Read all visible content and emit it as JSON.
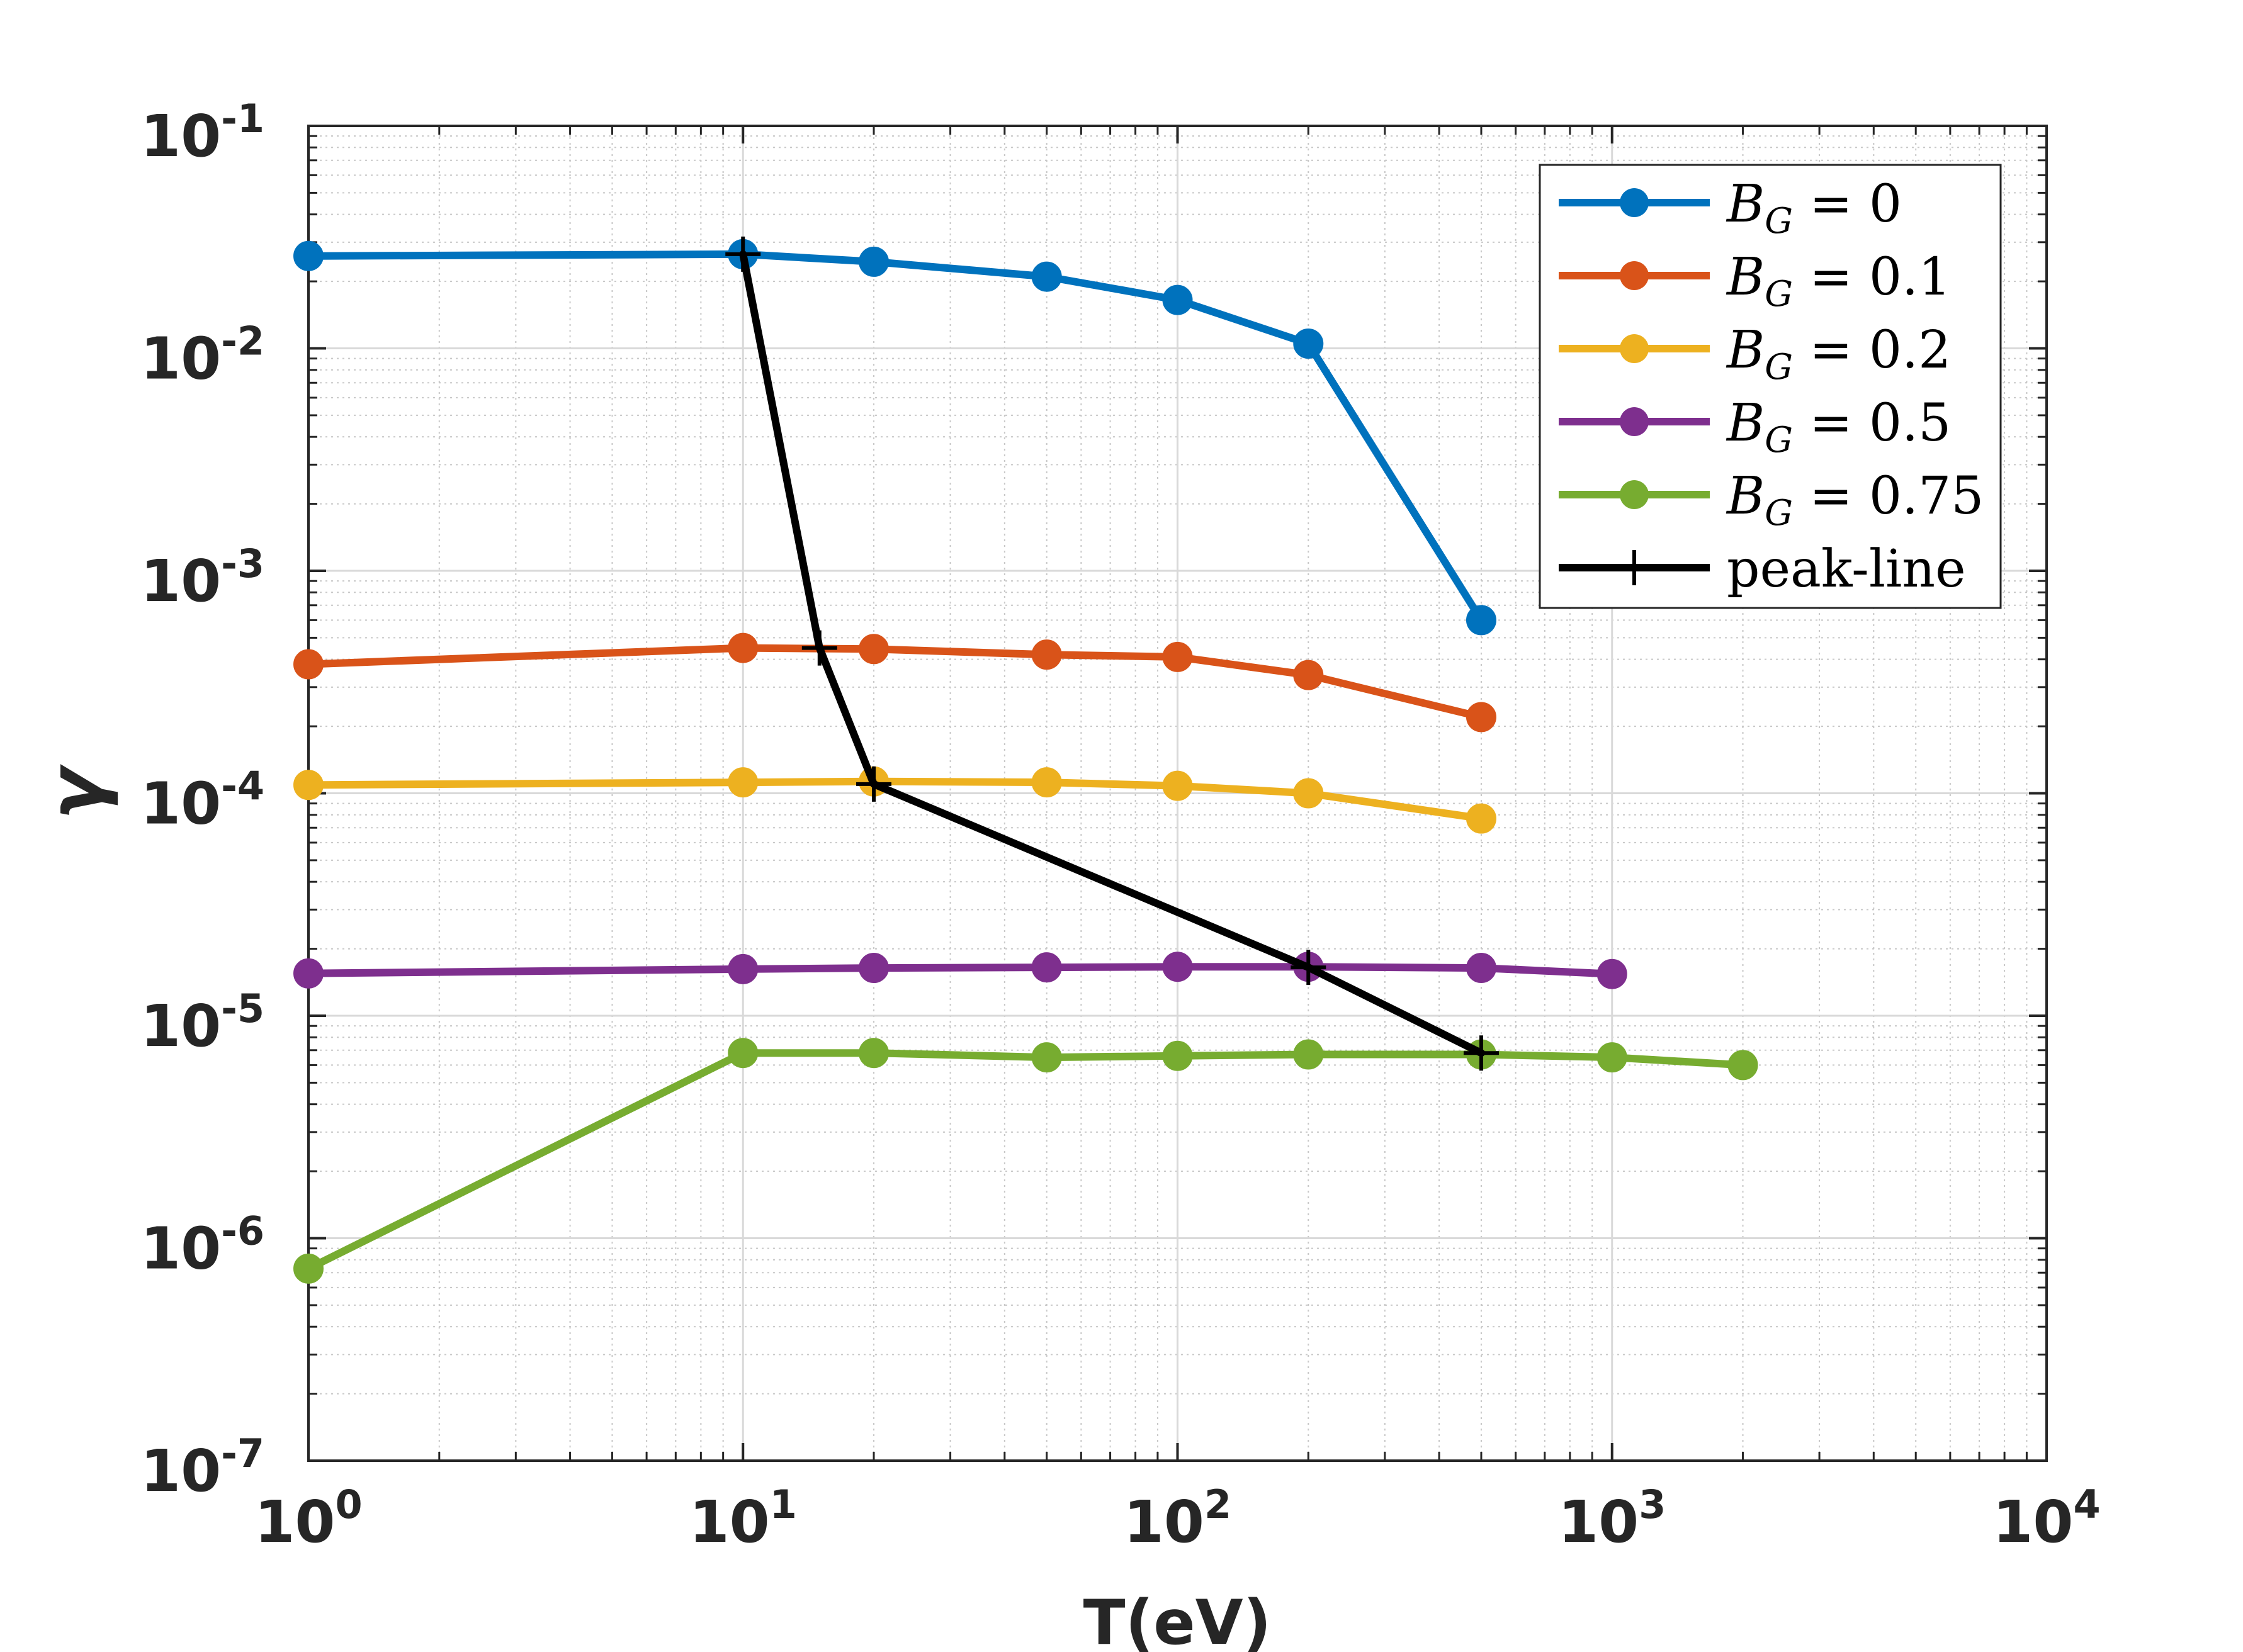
{
  "chart_data": {
    "type": "line",
    "xscale": "log",
    "yscale": "log",
    "xlabel": "T(eV)",
    "ylabel": "γ",
    "xlim": [
      1,
      10000
    ],
    "ylim": [
      1e-07,
      0.1
    ],
    "grid": true,
    "minor_grid": true,
    "legend_position": "top-right",
    "x_ticks": [
      {
        "value": 1,
        "base": "10",
        "exp": "0"
      },
      {
        "value": 10,
        "base": "10",
        "exp": "1"
      },
      {
        "value": 100,
        "base": "10",
        "exp": "2"
      },
      {
        "value": 1000,
        "base": "10",
        "exp": "3"
      },
      {
        "value": 10000,
        "base": "10",
        "exp": "4"
      }
    ],
    "y_ticks": [
      {
        "value": 1e-07,
        "base": "10",
        "exp": "-7"
      },
      {
        "value": 1e-06,
        "base": "10",
        "exp": "-6"
      },
      {
        "value": 1e-05,
        "base": "10",
        "exp": "-5"
      },
      {
        "value": 0.0001,
        "base": "10",
        "exp": "-4"
      },
      {
        "value": 0.001,
        "base": "10",
        "exp": "-3"
      },
      {
        "value": 0.01,
        "base": "10",
        "exp": "-2"
      },
      {
        "value": 0.1,
        "base": "10",
        "exp": "-1"
      }
    ],
    "series": [
      {
        "name": "B_G = 0",
        "label_main": "B",
        "label_sub": "G",
        "label_rest": " = 0",
        "color": "#0072BD",
        "marker": "circle",
        "x": [
          1,
          10,
          20,
          50,
          100,
          200,
          500
        ],
        "y": [
          0.026,
          0.0265,
          0.0245,
          0.021,
          0.0165,
          0.0105,
          0.0006
        ]
      },
      {
        "name": "B_G = 0.1",
        "label_main": "B",
        "label_sub": "G",
        "label_rest": " = 0.1",
        "color": "#D95319",
        "marker": "circle",
        "x": [
          1,
          10,
          20,
          50,
          100,
          200,
          500
        ],
        "y": [
          0.00038,
          0.00045,
          0.000445,
          0.00042,
          0.00041,
          0.00034,
          0.00022
        ]
      },
      {
        "name": "B_G = 0.2",
        "label_main": "B",
        "label_sub": "G",
        "label_rest": " = 0.2",
        "color": "#EDB120",
        "marker": "circle",
        "x": [
          1,
          10,
          20,
          50,
          100,
          200,
          500
        ],
        "y": [
          0.000109,
          0.000112,
          0.000113,
          0.000112,
          0.000108,
          0.0001,
          7.7e-05
        ]
      },
      {
        "name": "B_G = 0.5",
        "label_main": "B",
        "label_sub": "G",
        "label_rest": " = 0.5",
        "color": "#7E2F8E",
        "marker": "circle",
        "x": [
          1,
          10,
          20,
          50,
          100,
          200,
          500,
          1000
        ],
        "y": [
          1.55e-05,
          1.62e-05,
          1.64e-05,
          1.65e-05,
          1.66e-05,
          1.66e-05,
          1.64e-05,
          1.54e-05
        ]
      },
      {
        "name": "B_G = 0.75",
        "label_main": "B",
        "label_sub": "G",
        "label_rest": " = 0.75",
        "color": "#77AC30",
        "marker": "circle",
        "x": [
          1,
          10,
          20,
          50,
          100,
          200,
          500,
          1000,
          2000
        ],
        "y": [
          7.3e-07,
          6.8e-06,
          6.8e-06,
          6.5e-06,
          6.6e-06,
          6.7e-06,
          6.7e-06,
          6.5e-06,
          6e-06
        ]
      },
      {
        "name": "peak-line",
        "label_main": "peak-line",
        "label_sub": "",
        "label_rest": "",
        "color": "#000000",
        "marker": "plus",
        "x": [
          10,
          15,
          20,
          200,
          500
        ],
        "y": [
          0.0265,
          0.00045,
          0.00011,
          1.65e-05,
          6.8e-06
        ]
      }
    ]
  }
}
